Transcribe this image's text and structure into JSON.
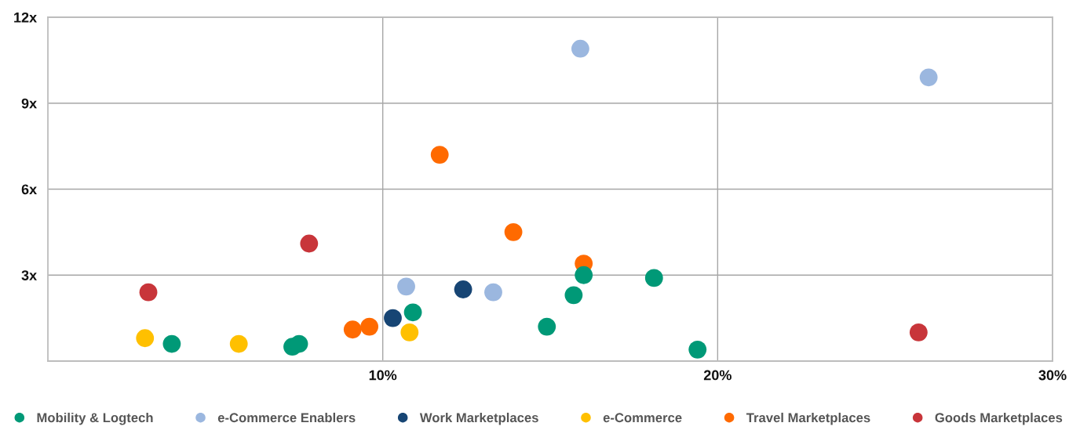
{
  "chart_data": {
    "type": "scatter",
    "xlim": [
      0,
      30
    ],
    "ylim": [
      0,
      12
    ],
    "xticks": [
      {
        "value": 10,
        "label": "10%"
      },
      {
        "value": 20,
        "label": "20%"
      },
      {
        "value": 30,
        "label": "30%"
      }
    ],
    "yticks": [
      {
        "value": 3,
        "label": "3x"
      },
      {
        "value": 6,
        "label": "6x"
      },
      {
        "value": 9,
        "label": "9x"
      },
      {
        "value": 12,
        "label": "12x"
      }
    ],
    "grid": true,
    "legend": "bottom",
    "marker": "circle",
    "series": [
      {
        "name": "Mobility & Logtech",
        "color": "#009977",
        "x": [
          3.7,
          7.3,
          7.5,
          10.9,
          14.9,
          15.7,
          16.0,
          18.1,
          19.4
        ],
        "values": [
          0.6,
          0.5,
          0.6,
          1.7,
          1.2,
          2.3,
          3.0,
          2.9,
          0.4
        ]
      },
      {
        "name": "e-Commerce Enablers",
        "color": "#9bb7df",
        "x": [
          10.7,
          13.3,
          15.9,
          26.3
        ],
        "values": [
          2.6,
          2.4,
          10.9,
          9.9
        ]
      },
      {
        "name": "Work Marketplaces",
        "color": "#174574",
        "x": [
          10.3,
          12.4
        ],
        "values": [
          1.5,
          2.5
        ]
      },
      {
        "name": "e-Commerce",
        "color": "#ffc000",
        "x": [
          2.9,
          5.7,
          10.8
        ],
        "values": [
          0.8,
          0.6,
          1.0
        ]
      },
      {
        "name": "Travel Marketplaces",
        "color": "#ff6a00",
        "x": [
          9.1,
          9.6,
          11.7,
          13.9,
          16.0
        ],
        "values": [
          1.1,
          1.2,
          7.2,
          4.5,
          3.4
        ]
      },
      {
        "name": "Goods Marketplaces",
        "color": "#c8353a",
        "x": [
          3.0,
          7.8,
          26.0
        ],
        "values": [
          2.4,
          4.1,
          1.0
        ]
      }
    ]
  }
}
